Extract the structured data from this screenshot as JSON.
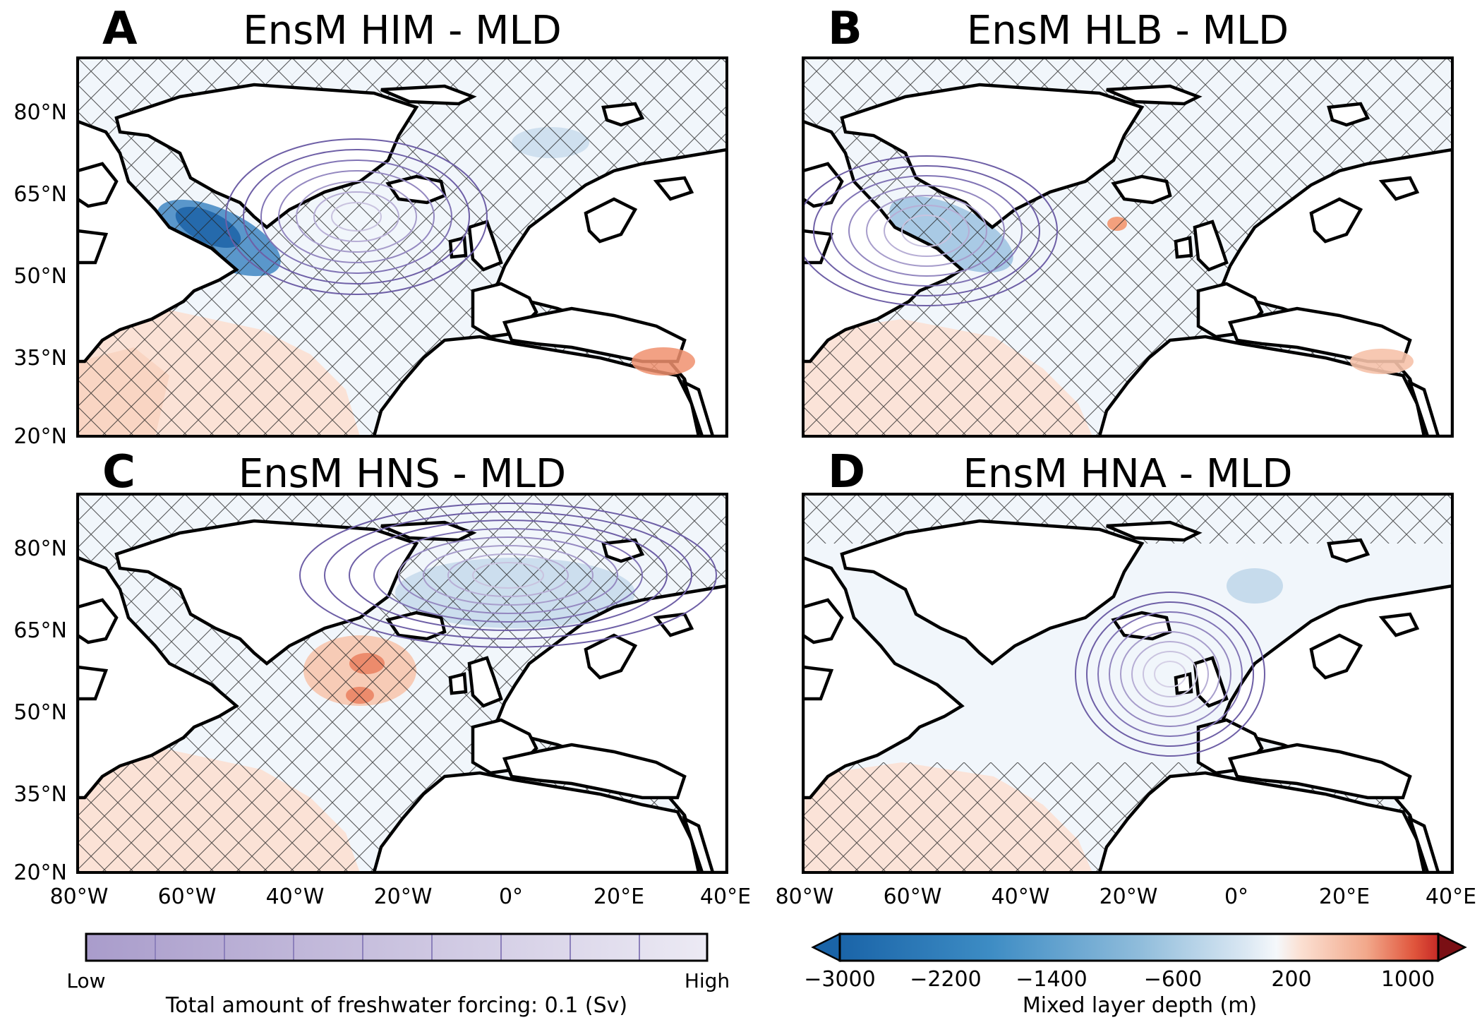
{
  "panels": [
    {
      "letter": "A",
      "title": "EnsM HIM - MLD"
    },
    {
      "letter": "B",
      "title": "EnsM HLB - MLD"
    },
    {
      "letter": "C",
      "title": "EnsM HNS - MLD"
    },
    {
      "letter": "D",
      "title": "EnsM HNA - MLD"
    }
  ],
  "lat_labels": [
    "80°N",
    "65°N",
    "50°N",
    "35°N",
    "20°N"
  ],
  "lon_labels": [
    "80°W",
    "60°W",
    "40°W",
    "20°W",
    "0°",
    "20°E",
    "40°E"
  ],
  "forcing_colorbar": {
    "low": "Low",
    "high": "High",
    "label": "Total amount of freshwater forcing: 0.1 (Sv)"
  },
  "mld_colorbar": {
    "ticks": [
      "−3000",
      "−2200",
      "−1400",
      "−600",
      "200",
      "1000"
    ],
    "label": "Mixed layer depth (m)"
  },
  "colors": {
    "deep_blue": "#2166ac",
    "light_blue": "#eef4fa",
    "light_red": "#fbe3d8",
    "deep_red": "#e0603f",
    "contour_purple": "#6e5fa6",
    "coastline": "#000000"
  }
}
